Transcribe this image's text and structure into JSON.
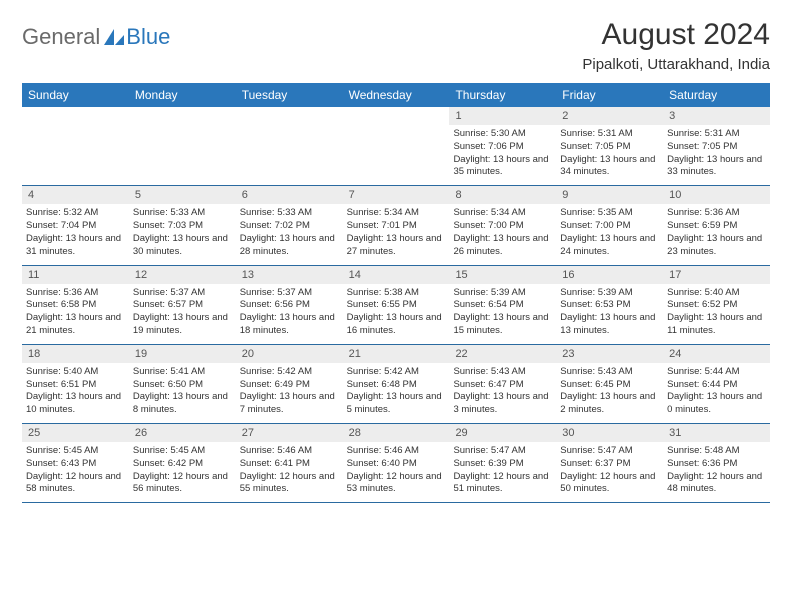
{
  "brand": {
    "part1": "General",
    "part2": "Blue"
  },
  "title": "August 2024",
  "location": "Pipalkoti, Uttarakhand, India",
  "colors": {
    "header_bg": "#2a77bb",
    "header_text": "#ffffff",
    "rule": "#2a6aa0",
    "daynum_bg": "#ededed",
    "body_text": "#333333",
    "brand_gray": "#6a6a6a",
    "brand_blue": "#2a77bb",
    "page_bg": "#ffffff"
  },
  "typography": {
    "title_fontsize": 30,
    "location_fontsize": 15,
    "weekday_fontsize": 12,
    "daynum_fontsize": 11,
    "body_fontsize": 9.5
  },
  "weekdays": [
    "Sunday",
    "Monday",
    "Tuesday",
    "Wednesday",
    "Thursday",
    "Friday",
    "Saturday"
  ],
  "weeks": [
    [
      {
        "num": "",
        "sunrise": "",
        "sunset": "",
        "daylight": ""
      },
      {
        "num": "",
        "sunrise": "",
        "sunset": "",
        "daylight": ""
      },
      {
        "num": "",
        "sunrise": "",
        "sunset": "",
        "daylight": ""
      },
      {
        "num": "",
        "sunrise": "",
        "sunset": "",
        "daylight": ""
      },
      {
        "num": "1",
        "sunrise": "Sunrise: 5:30 AM",
        "sunset": "Sunset: 7:06 PM",
        "daylight": "Daylight: 13 hours and 35 minutes."
      },
      {
        "num": "2",
        "sunrise": "Sunrise: 5:31 AM",
        "sunset": "Sunset: 7:05 PM",
        "daylight": "Daylight: 13 hours and 34 minutes."
      },
      {
        "num": "3",
        "sunrise": "Sunrise: 5:31 AM",
        "sunset": "Sunset: 7:05 PM",
        "daylight": "Daylight: 13 hours and 33 minutes."
      }
    ],
    [
      {
        "num": "4",
        "sunrise": "Sunrise: 5:32 AM",
        "sunset": "Sunset: 7:04 PM",
        "daylight": "Daylight: 13 hours and 31 minutes."
      },
      {
        "num": "5",
        "sunrise": "Sunrise: 5:33 AM",
        "sunset": "Sunset: 7:03 PM",
        "daylight": "Daylight: 13 hours and 30 minutes."
      },
      {
        "num": "6",
        "sunrise": "Sunrise: 5:33 AM",
        "sunset": "Sunset: 7:02 PM",
        "daylight": "Daylight: 13 hours and 28 minutes."
      },
      {
        "num": "7",
        "sunrise": "Sunrise: 5:34 AM",
        "sunset": "Sunset: 7:01 PM",
        "daylight": "Daylight: 13 hours and 27 minutes."
      },
      {
        "num": "8",
        "sunrise": "Sunrise: 5:34 AM",
        "sunset": "Sunset: 7:00 PM",
        "daylight": "Daylight: 13 hours and 26 minutes."
      },
      {
        "num": "9",
        "sunrise": "Sunrise: 5:35 AM",
        "sunset": "Sunset: 7:00 PM",
        "daylight": "Daylight: 13 hours and 24 minutes."
      },
      {
        "num": "10",
        "sunrise": "Sunrise: 5:36 AM",
        "sunset": "Sunset: 6:59 PM",
        "daylight": "Daylight: 13 hours and 23 minutes."
      }
    ],
    [
      {
        "num": "11",
        "sunrise": "Sunrise: 5:36 AM",
        "sunset": "Sunset: 6:58 PM",
        "daylight": "Daylight: 13 hours and 21 minutes."
      },
      {
        "num": "12",
        "sunrise": "Sunrise: 5:37 AM",
        "sunset": "Sunset: 6:57 PM",
        "daylight": "Daylight: 13 hours and 19 minutes."
      },
      {
        "num": "13",
        "sunrise": "Sunrise: 5:37 AM",
        "sunset": "Sunset: 6:56 PM",
        "daylight": "Daylight: 13 hours and 18 minutes."
      },
      {
        "num": "14",
        "sunrise": "Sunrise: 5:38 AM",
        "sunset": "Sunset: 6:55 PM",
        "daylight": "Daylight: 13 hours and 16 minutes."
      },
      {
        "num": "15",
        "sunrise": "Sunrise: 5:39 AM",
        "sunset": "Sunset: 6:54 PM",
        "daylight": "Daylight: 13 hours and 15 minutes."
      },
      {
        "num": "16",
        "sunrise": "Sunrise: 5:39 AM",
        "sunset": "Sunset: 6:53 PM",
        "daylight": "Daylight: 13 hours and 13 minutes."
      },
      {
        "num": "17",
        "sunrise": "Sunrise: 5:40 AM",
        "sunset": "Sunset: 6:52 PM",
        "daylight": "Daylight: 13 hours and 11 minutes."
      }
    ],
    [
      {
        "num": "18",
        "sunrise": "Sunrise: 5:40 AM",
        "sunset": "Sunset: 6:51 PM",
        "daylight": "Daylight: 13 hours and 10 minutes."
      },
      {
        "num": "19",
        "sunrise": "Sunrise: 5:41 AM",
        "sunset": "Sunset: 6:50 PM",
        "daylight": "Daylight: 13 hours and 8 minutes."
      },
      {
        "num": "20",
        "sunrise": "Sunrise: 5:42 AM",
        "sunset": "Sunset: 6:49 PM",
        "daylight": "Daylight: 13 hours and 7 minutes."
      },
      {
        "num": "21",
        "sunrise": "Sunrise: 5:42 AM",
        "sunset": "Sunset: 6:48 PM",
        "daylight": "Daylight: 13 hours and 5 minutes."
      },
      {
        "num": "22",
        "sunrise": "Sunrise: 5:43 AM",
        "sunset": "Sunset: 6:47 PM",
        "daylight": "Daylight: 13 hours and 3 minutes."
      },
      {
        "num": "23",
        "sunrise": "Sunrise: 5:43 AM",
        "sunset": "Sunset: 6:45 PM",
        "daylight": "Daylight: 13 hours and 2 minutes."
      },
      {
        "num": "24",
        "sunrise": "Sunrise: 5:44 AM",
        "sunset": "Sunset: 6:44 PM",
        "daylight": "Daylight: 13 hours and 0 minutes."
      }
    ],
    [
      {
        "num": "25",
        "sunrise": "Sunrise: 5:45 AM",
        "sunset": "Sunset: 6:43 PM",
        "daylight": "Daylight: 12 hours and 58 minutes."
      },
      {
        "num": "26",
        "sunrise": "Sunrise: 5:45 AM",
        "sunset": "Sunset: 6:42 PM",
        "daylight": "Daylight: 12 hours and 56 minutes."
      },
      {
        "num": "27",
        "sunrise": "Sunrise: 5:46 AM",
        "sunset": "Sunset: 6:41 PM",
        "daylight": "Daylight: 12 hours and 55 minutes."
      },
      {
        "num": "28",
        "sunrise": "Sunrise: 5:46 AM",
        "sunset": "Sunset: 6:40 PM",
        "daylight": "Daylight: 12 hours and 53 minutes."
      },
      {
        "num": "29",
        "sunrise": "Sunrise: 5:47 AM",
        "sunset": "Sunset: 6:39 PM",
        "daylight": "Daylight: 12 hours and 51 minutes."
      },
      {
        "num": "30",
        "sunrise": "Sunrise: 5:47 AM",
        "sunset": "Sunset: 6:37 PM",
        "daylight": "Daylight: 12 hours and 50 minutes."
      },
      {
        "num": "31",
        "sunrise": "Sunrise: 5:48 AM",
        "sunset": "Sunset: 6:36 PM",
        "daylight": "Daylight: 12 hours and 48 minutes."
      }
    ]
  ]
}
